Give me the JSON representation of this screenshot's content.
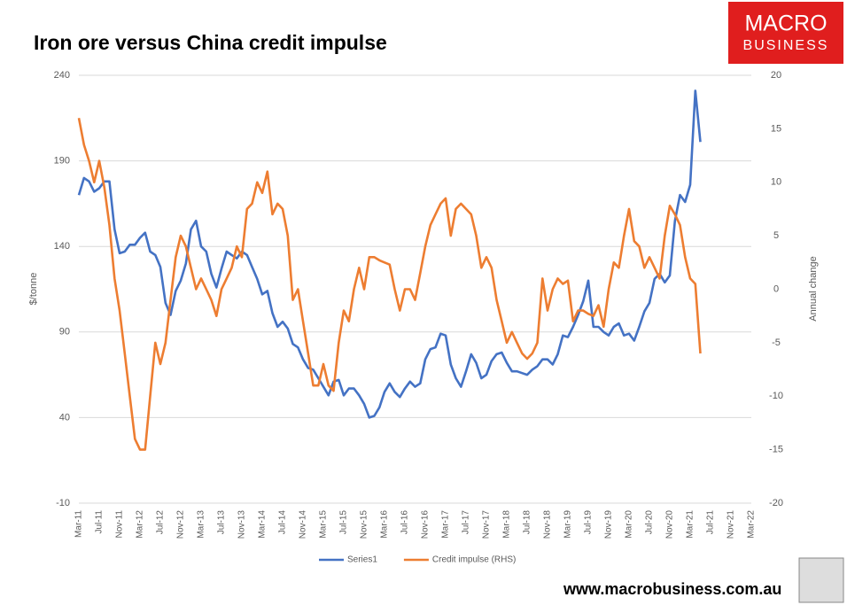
{
  "chart_data": {
    "type": "line",
    "title": "Iron ore versus China credit impulse",
    "ylabel": "$/tonne",
    "y2label": "Annual change",
    "logo": [
      "MACRO",
      "BUSINESS"
    ],
    "website": "www.macrobusiness.com.au",
    "categories": [
      "Mar-11",
      null,
      null,
      null,
      "Jul-11",
      null,
      null,
      null,
      "Nov-11",
      null,
      null,
      null,
      "Mar-12",
      null,
      null,
      null,
      "Jul-12",
      null,
      null,
      null,
      "Nov-12",
      null,
      null,
      null,
      "Mar-13",
      null,
      null,
      null,
      "Jul-13",
      null,
      null,
      null,
      "Nov-13",
      null,
      null,
      null,
      "Mar-14",
      null,
      null,
      null,
      "Jul-14",
      null,
      null,
      null,
      "Nov-14",
      null,
      null,
      null,
      "Mar-15",
      null,
      null,
      null,
      "Jul-15",
      null,
      null,
      null,
      "Nov-15",
      null,
      null,
      null,
      "Mar-16",
      null,
      null,
      null,
      "Jul-16",
      null,
      null,
      null,
      "Nov-16",
      null,
      null,
      null,
      "Mar-17",
      null,
      null,
      null,
      "Jul-17",
      null,
      null,
      null,
      "Nov-17",
      null,
      null,
      null,
      "Mar-18",
      null,
      null,
      null,
      "Jul-18",
      null,
      null,
      null,
      "Nov-18",
      null,
      null,
      null,
      "Mar-19",
      null,
      null,
      null,
      "Jul-19",
      null,
      null,
      null,
      "Nov-19",
      null,
      null,
      null,
      "Mar-20",
      null,
      null,
      null,
      "Jul-20",
      null,
      null,
      null,
      "Nov-20",
      null,
      null,
      null,
      "Mar-21",
      null,
      null,
      null,
      "Jul-21",
      null,
      null,
      null,
      "Nov-21",
      null,
      null,
      null,
      "Mar-22"
    ],
    "series": [
      {
        "name": "Series1",
        "color": "#4472c4",
        "axis": "y",
        "values": [
          170,
          180,
          178,
          172,
          174,
          178,
          178,
          150,
          136,
          137,
          141,
          141,
          145,
          148,
          137,
          135,
          128,
          107,
          100,
          114,
          120,
          130,
          150,
          155,
          140,
          137,
          124,
          116,
          127,
          137,
          135,
          133,
          137,
          135,
          128,
          121,
          112,
          114,
          101,
          93,
          96,
          92,
          83,
          81,
          74,
          69,
          68,
          63,
          58,
          53,
          61,
          62,
          53,
          57,
          57,
          53,
          48,
          40,
          41,
          46,
          55,
          60,
          55,
          52,
          57,
          61,
          58,
          60,
          74,
          80,
          81,
          89,
          88,
          71,
          63,
          58,
          67,
          77,
          72,
          63,
          65,
          73,
          77,
          78,
          72,
          67,
          67,
          66,
          65,
          68,
          70,
          74,
          74,
          71,
          77,
          88,
          87,
          93,
          100,
          108,
          120,
          93,
          93,
          90,
          88,
          93,
          95,
          88,
          89,
          85,
          93,
          102,
          107,
          121,
          124,
          119,
          123,
          155,
          170,
          166,
          176,
          231,
          201,
          null,
          null,
          null,
          null,
          null,
          null,
          null,
          null,
          null,
          null
        ]
      },
      {
        "name": "Credit impulse (RHS)",
        "color": "#ed7d31",
        "axis": "y2",
        "values": [
          16,
          13.5,
          12,
          10,
          12,
          9.5,
          6,
          1,
          -2,
          -6,
          -10,
          -14,
          -15,
          -15,
          -10,
          -5,
          -7,
          -5,
          -1,
          3,
          5,
          4,
          2,
          0,
          1,
          0,
          -1,
          -2.5,
          0,
          1,
          2,
          4,
          3,
          7.5,
          8,
          10,
          9,
          11,
          7,
          8,
          7.5,
          5,
          -1,
          0,
          -3,
          -6,
          -9,
          -9,
          -7,
          -9,
          -9.5,
          -5,
          -2,
          -3,
          0,
          2,
          0,
          3,
          3,
          2.7,
          2.5,
          2.3,
          0,
          -2,
          0,
          0,
          -1,
          1.5,
          4,
          6,
          7,
          8,
          8.5,
          5,
          7.5,
          8,
          7.5,
          7,
          5,
          2,
          3,
          2,
          -1,
          -3,
          -5,
          -4,
          -5,
          -6,
          -6.5,
          -6,
          -5,
          1,
          -2,
          0,
          1,
          0.5,
          0.8,
          -3,
          -2,
          -2,
          -2.3,
          -2.5,
          -1.5,
          -3.5,
          0,
          2.5,
          2,
          5,
          7.5,
          4.5,
          4,
          2,
          3,
          2,
          1,
          5,
          7.8,
          7,
          6,
          3,
          1,
          0.5,
          -6,
          null,
          null,
          null,
          null,
          null,
          null,
          null,
          null,
          null,
          null
        ]
      }
    ],
    "ylim": [
      -10,
      240
    ],
    "yticks": [
      240,
      190,
      140,
      90,
      40,
      -10
    ],
    "y2lim": [
      -20,
      20
    ],
    "y2ticks": [
      20,
      15,
      10,
      5,
      0,
      -5,
      -10,
      -15,
      -20
    ],
    "grid": true,
    "legend": "bottom"
  }
}
